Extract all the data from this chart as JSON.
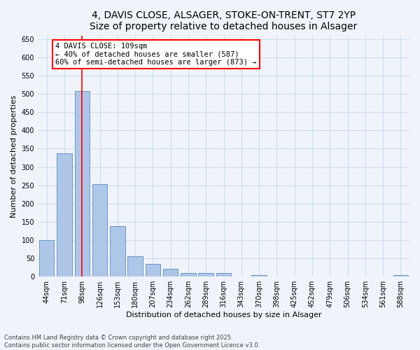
{
  "title_line1": "4, DAVIS CLOSE, ALSAGER, STOKE-ON-TRENT, ST7 2YP",
  "title_line2": "Size of property relative to detached houses in Alsager",
  "xlabel": "Distribution of detached houses by size in Alsager",
  "ylabel": "Number of detached properties",
  "categories": [
    "44sqm",
    "71sqm",
    "98sqm",
    "126sqm",
    "153sqm",
    "180sqm",
    "207sqm",
    "234sqm",
    "262sqm",
    "289sqm",
    "316sqm",
    "343sqm",
    "370sqm",
    "398sqm",
    "425sqm",
    "452sqm",
    "479sqm",
    "506sqm",
    "534sqm",
    "561sqm",
    "588sqm"
  ],
  "values": [
    100,
    337,
    507,
    254,
    138,
    55,
    35,
    22,
    10,
    10,
    10,
    0,
    5,
    0,
    0,
    0,
    0,
    0,
    0,
    0,
    4
  ],
  "bar_color": "#aec6e8",
  "bar_edge_color": "#5a8fc0",
  "vline_x": 2,
  "vline_color": "red",
  "annotation_text": "4 DAVIS CLOSE: 109sqm\n← 40% of detached houses are smaller (587)\n60% of semi-detached houses are larger (873) →",
  "annotation_box_color": "white",
  "annotation_box_edge_color": "red",
  "ylim": [
    0,
    660
  ],
  "yticks": [
    0,
    50,
    100,
    150,
    200,
    250,
    300,
    350,
    400,
    450,
    500,
    550,
    600,
    650
  ],
  "grid_color": "#ccddee",
  "background_color": "#f0f4fa",
  "footer_text": "Contains HM Land Registry data © Crown copyright and database right 2025.\nContains public sector information licensed under the Open Government Licence v3.0.",
  "title_fontsize": 10,
  "axis_label_fontsize": 8,
  "tick_fontsize": 7,
  "annotation_fontsize": 7.5
}
